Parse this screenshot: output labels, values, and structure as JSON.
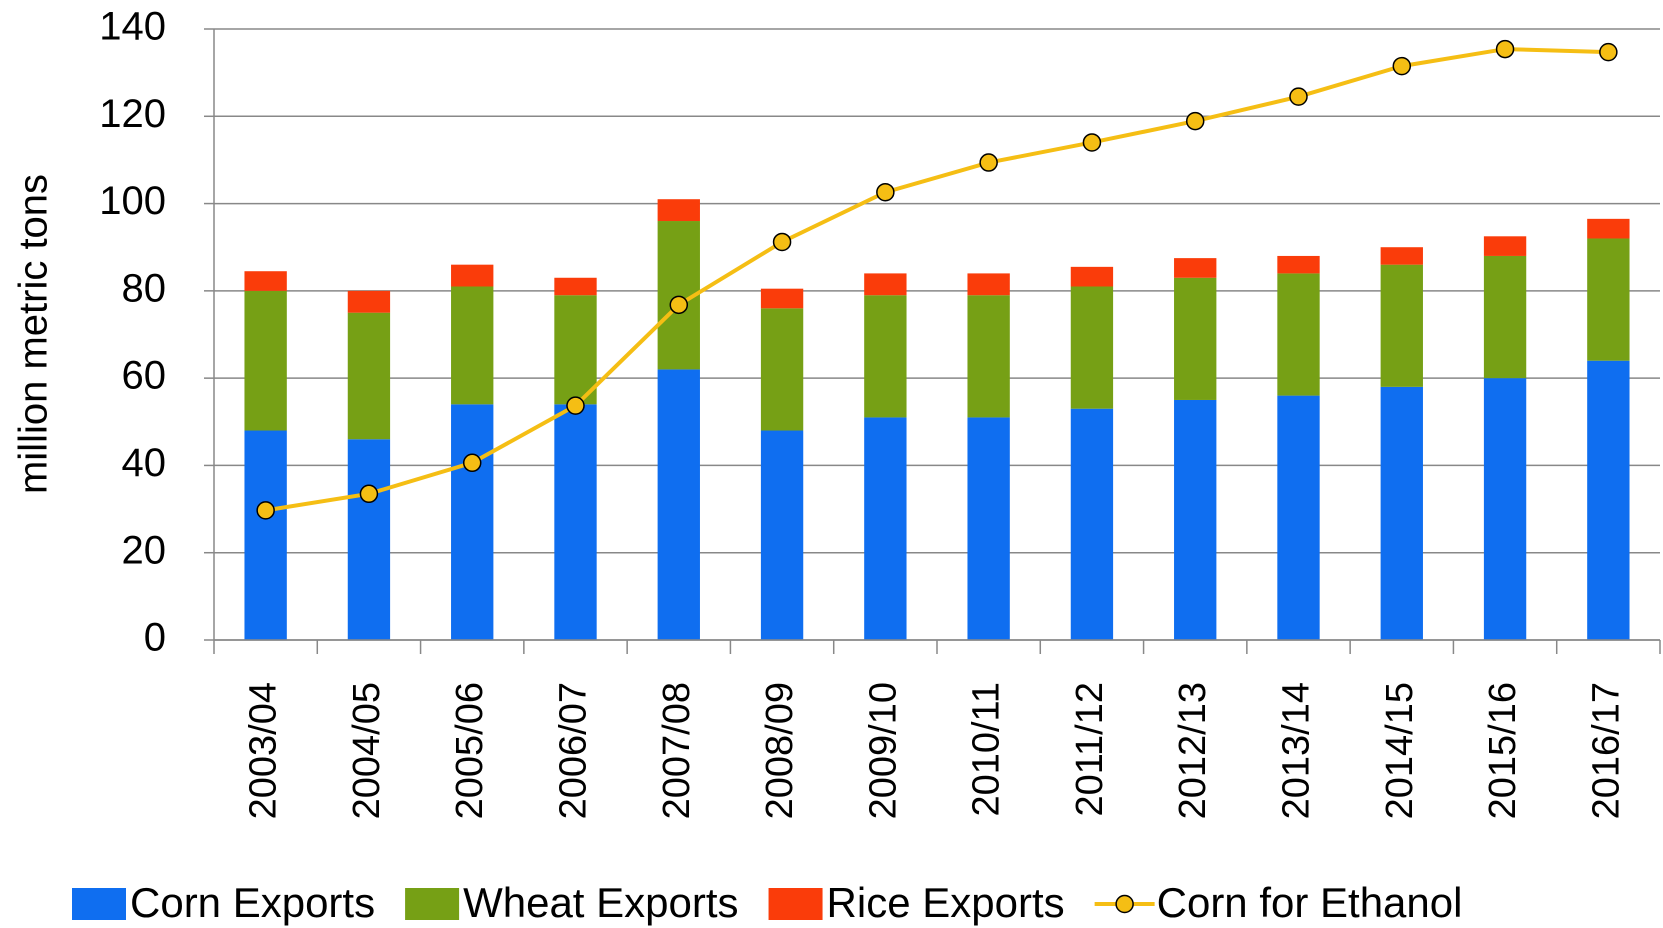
{
  "chart_data": {
    "type": "bar",
    "stacked": true,
    "y_label": "million metric tons",
    "categories": [
      "2003/04",
      "2004/05",
      "2005/06",
      "2006/07",
      "2007/08",
      "2008/09",
      "2009/10",
      "2010/11",
      "2011/12",
      "2012/13",
      "2013/14",
      "2014/15",
      "2015/16",
      "2016/17"
    ],
    "series": [
      {
        "name": "Corn Exports",
        "color": "#0f6ef0",
        "type": "bar",
        "values": [
          48,
          46,
          54,
          54,
          62,
          48,
          51,
          51,
          53,
          55,
          56,
          58,
          60,
          64
        ]
      },
      {
        "name": "Wheat Exports",
        "color": "#76a015",
        "type": "bar",
        "values": [
          32,
          29,
          27,
          25,
          34,
          28,
          28,
          28,
          28,
          28,
          28,
          28,
          28,
          28
        ]
      },
      {
        "name": "Rice Exports",
        "color": "#fa3c0a",
        "type": "bar",
        "values": [
          4.5,
          5,
          5,
          4,
          5,
          4.5,
          5,
          5,
          4.5,
          4.5,
          4,
          4,
          4.5,
          4.5
        ]
      },
      {
        "name": "Corn for Ethanol",
        "color": "#f5be14",
        "type": "line",
        "values": [
          29.7,
          33.5,
          40.6,
          53.7,
          76.8,
          91.2,
          102.6,
          109.4,
          114,
          118.9,
          124.5,
          131.5,
          135.4,
          134.7
        ]
      }
    ],
    "ylim": [
      0,
      140
    ],
    "yticks": [
      0,
      20,
      40,
      60,
      80,
      100,
      120,
      140
    ],
    "grid": true,
    "legend": "bottom"
  }
}
